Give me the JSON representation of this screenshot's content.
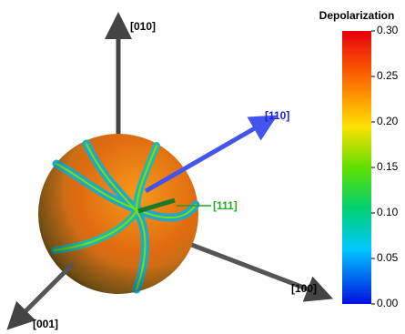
{
  "figure": {
    "axis_labels": {
      "a010": "[010]",
      "a110": "[110]",
      "a111": "[111]",
      "a100": "[100]",
      "a001": "[001]"
    },
    "colorbar": {
      "title": "Depolarization",
      "range": [
        0,
        0.3
      ],
      "ticks": [
        {
          "value": 0,
          "label": "0.00"
        },
        {
          "value": 0.05,
          "label": "0.05"
        },
        {
          "value": 0.1,
          "label": "0.10"
        },
        {
          "value": 0.15,
          "label": "0.15"
        },
        {
          "value": 0.2,
          "label": "0.20"
        },
        {
          "value": 0.25,
          "label": "0.25"
        },
        {
          "value": 0.3,
          "label": "0.30"
        }
      ]
    }
  }
}
